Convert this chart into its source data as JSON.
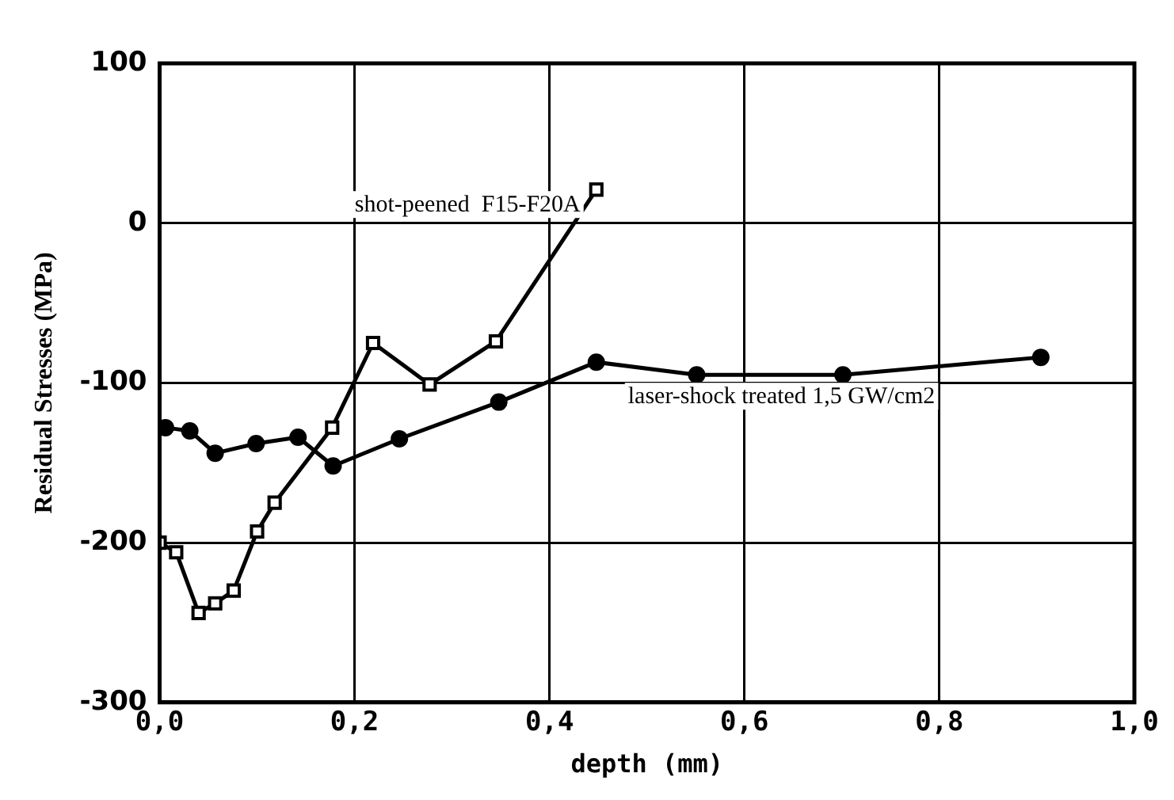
{
  "chart_data": {
    "type": "line",
    "xlabel": "depth (mm)",
    "ylabel": "Residual Stresses (MPa)",
    "xlim": [
      0,
      1
    ],
    "xticks": [
      {
        "value": 0,
        "label": "0,0"
      },
      {
        "value": 0.2,
        "label": "0,2"
      },
      {
        "value": 0.4,
        "label": "0,4"
      },
      {
        "value": 0.6,
        "label": "0,6"
      },
      {
        "value": 0.8,
        "label": "0,8"
      },
      {
        "value": 1,
        "label": "1,0"
      }
    ],
    "ylim": [
      -300,
      100
    ],
    "yticks": [
      -300,
      -200,
      -100,
      0,
      100
    ],
    "grid": true,
    "legend": false,
    "line_style": "solid",
    "series": [
      {
        "name": "shot-peened  F15-F20A",
        "color": "#000000",
        "marker": "square",
        "x": [
          0.0,
          0.017,
          0.04,
          0.057,
          0.076,
          0.1,
          0.118,
          0.177,
          0.219,
          0.277,
          0.345,
          0.448
        ],
        "values": [
          -200,
          -206,
          -244,
          -238,
          -230,
          -193,
          -175,
          -128,
          -75,
          -101,
          -74,
          21
        ]
      },
      {
        "name": "laser-shock treated 1,5 GW/cm2",
        "color": "#000000",
        "marker": "circle",
        "x": [
          0.006,
          0.031,
          0.057,
          0.099,
          0.142,
          0.178,
          0.246,
          0.348,
          0.448,
          0.551,
          0.701,
          0.904
        ],
        "values": [
          -128,
          -130,
          -144,
          -138,
          -134,
          -152,
          -135,
          -112,
          -87,
          -95,
          -95,
          -84
        ]
      }
    ]
  }
}
